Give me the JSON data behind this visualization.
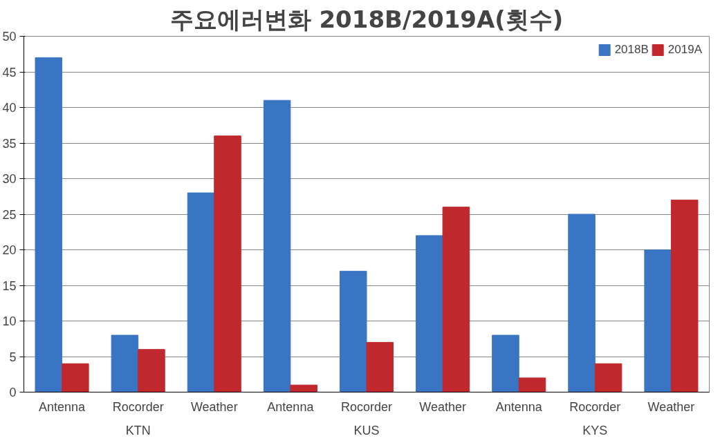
{
  "chart_data": {
    "type": "bar",
    "title": "주요에러변화 2018B/2019A(횟수)",
    "categories": [
      "Antenna",
      "Rocorder",
      "Weather",
      "Antenna",
      "Rocorder",
      "Weather",
      "Antenna",
      "Rocorder",
      "Weather"
    ],
    "series": [
      {
        "name": "2018B",
        "color": "#3a75c4",
        "values": [
          47,
          8,
          28,
          41,
          17,
          22,
          8,
          25,
          20
        ]
      },
      {
        "name": "2019A",
        "color": "#c0282d",
        "values": [
          4,
          6,
          36,
          1,
          7,
          26,
          2,
          4,
          27
        ]
      }
    ],
    "annotations": [
      "KTN",
      "KUS",
      "KYS"
    ],
    "ylim": [
      0,
      50
    ],
    "yticks": [
      0,
      5,
      10,
      15,
      20,
      25,
      30,
      35,
      40,
      45,
      50
    ],
    "grid": "y",
    "legend": "top right"
  }
}
